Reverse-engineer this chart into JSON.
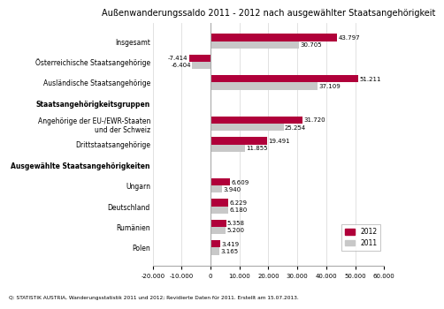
{
  "title": "Außenwanderungssaldo 2011 - 2012 nach ausgewählter Staatsangehörigkeit",
  "footnote": "Q: STATISTIK AUSTRIA, Wanderungsstatistik 2011 und 2012; Revidierte Daten für 2011. Erstellt am 15.07.2013.",
  "categories": [
    "Polen",
    "Rumänien",
    "Deutschland",
    "Ungarn",
    "Ausgewählte Staatsangehörigkeiten",
    "Drittstaatsangehörige",
    "Angehörige der EU-/EWR-Staaten\nund der Schweiz",
    "Staatsangehörigkeitsgruppen",
    "Ausländische Staatsangehörige",
    "Österreichische Staatsangehörige",
    "Insgesamt"
  ],
  "values_2012": [
    3419,
    5358,
    6229,
    6609,
    null,
    19491,
    31720,
    null,
    51211,
    -7414,
    43797
  ],
  "values_2011": [
    3165,
    5200,
    6180,
    3940,
    null,
    11855,
    25254,
    null,
    37109,
    -6404,
    30705
  ],
  "color_2012": "#b0003a",
  "color_2011": "#c8c8c8",
  "xlim": [
    -20000,
    60000
  ],
  "xticks": [
    -20000,
    -10000,
    0,
    10000,
    20000,
    30000,
    40000,
    50000,
    60000
  ],
  "bar_height": 0.35,
  "bold_labels": [
    "Staatsangehörigkeitsgruppen",
    "Ausgewählte Staatsangehörigkeiten"
  ],
  "label_2012": "2012",
  "label_2011": "2011"
}
